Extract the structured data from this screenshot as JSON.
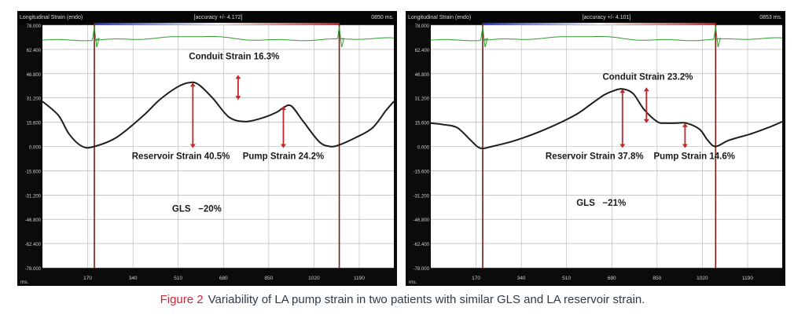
{
  "caption": {
    "figure_label": "Figure 2",
    "text": "Variability of LA pump strain in two patients with similar GLS and LA reservoir strain."
  },
  "colors": {
    "background": "#0b0b0b",
    "curve": "#1e1e1e",
    "ecg": "#2e9d2e",
    "arrow": "#c0282c",
    "marker_line": "#7a1b14",
    "caption_accent": "#c8283a"
  },
  "chart_data": [
    {
      "type": "line",
      "header_title": "Longitudinal Strain (endo)",
      "header_accuracy": "[accuracy +/- 4.172]",
      "header_time": "0850 ms.",
      "xlabel": "ms.",
      "ylabel": "",
      "xlim": [
        0,
        1320
      ],
      "ylim": [
        -78,
        78
      ],
      "y_ticks": [
        "78.000",
        "62.400",
        "46.800",
        "31.200",
        "15.600",
        "0.000",
        "-15.600",
        "-31.200",
        "-46.800",
        "-62.400",
        "-78.000"
      ],
      "x_ticks": [
        170,
        340,
        510,
        680,
        850,
        1020,
        1190
      ],
      "marker_lines_x": [
        195,
        1115
      ],
      "grid": true,
      "series": [
        {
          "x": [
            0,
            60,
            100,
            150,
            195,
            280,
            380,
            440,
            505,
            550,
            585,
            640,
            700,
            760,
            820,
            880,
            905,
            935,
            980,
            1040,
            1080,
            1115,
            1180,
            1240,
            1290,
            1320
          ],
          "y": [
            29,
            20,
            8,
            0,
            0,
            6,
            20,
            30,
            38,
            41,
            40,
            31,
            19,
            16,
            18,
            22,
            25,
            26,
            16,
            3,
            0,
            1,
            6,
            12,
            23,
            29
          ]
        }
      ],
      "annotations": [
        {
          "text": "Conduit Strain 16.3%",
          "x": 720,
          "y": 58
        },
        {
          "text": "Reservoir Strain 40.5%",
          "x": 520,
          "y": -6
        },
        {
          "text": "Pump Strain 24.2%",
          "x": 905,
          "y": -6
        },
        {
          "text": "GLS   −20%",
          "x": 580,
          "y": -40
        }
      ],
      "arrows": [
        {
          "x": 565,
          "y_from": 41,
          "y_to": -1
        },
        {
          "x": 735,
          "y_from": 46,
          "y_to": 30
        },
        {
          "x": 905,
          "y_from": 26,
          "y_to": -1
        }
      ]
    },
    {
      "type": "line",
      "header_title": "Longitudinal Strain (endo)",
      "header_accuracy": "[accuracy +/- 4.101]",
      "header_time": "0853 ms.",
      "xlabel": "ms.",
      "ylabel": "",
      "xlim": [
        0,
        1320
      ],
      "ylim": [
        -78,
        78
      ],
      "y_ticks": [
        "78.000",
        "62.400",
        "46.800",
        "31.200",
        "15.600",
        "0.000",
        "-15.600",
        "-31.200",
        "-46.800",
        "-62.400",
        "-78.000"
      ],
      "x_ticks": [
        170,
        340,
        510,
        680,
        850,
        1020,
        1190
      ],
      "marker_lines_x": [
        195,
        1070
      ],
      "grid": true,
      "series": [
        {
          "x": [
            0,
            50,
            100,
            150,
            185,
            230,
            320,
            430,
            540,
            600,
            650,
            690,
            720,
            760,
            800,
            850,
            880,
            920,
            960,
            1010,
            1040,
            1070,
            1120,
            1200,
            1280,
            1320
          ],
          "y": [
            15,
            14,
            12,
            4,
            -1,
            0,
            4,
            11,
            20,
            27,
            33,
            36,
            37,
            34,
            24,
            16,
            15,
            15,
            15,
            11,
            4,
            0,
            4,
            8,
            13,
            16
          ]
        }
      ],
      "annotations": [
        {
          "text": "Conduit Strain 23.2%",
          "x": 815,
          "y": 45
        },
        {
          "text": "Reservoir Strain 37.8%",
          "x": 615,
          "y": -6
        },
        {
          "text": "Pump Strain 14.6%",
          "x": 990,
          "y": -6
        },
        {
          "text": "GLS   −21%",
          "x": 640,
          "y": -36
        }
      ],
      "arrows": [
        {
          "x": 720,
          "y_from": 37,
          "y_to": -1
        },
        {
          "x": 810,
          "y_from": 38,
          "y_to": 15
        },
        {
          "x": 955,
          "y_from": 15,
          "y_to": -1
        }
      ]
    }
  ]
}
